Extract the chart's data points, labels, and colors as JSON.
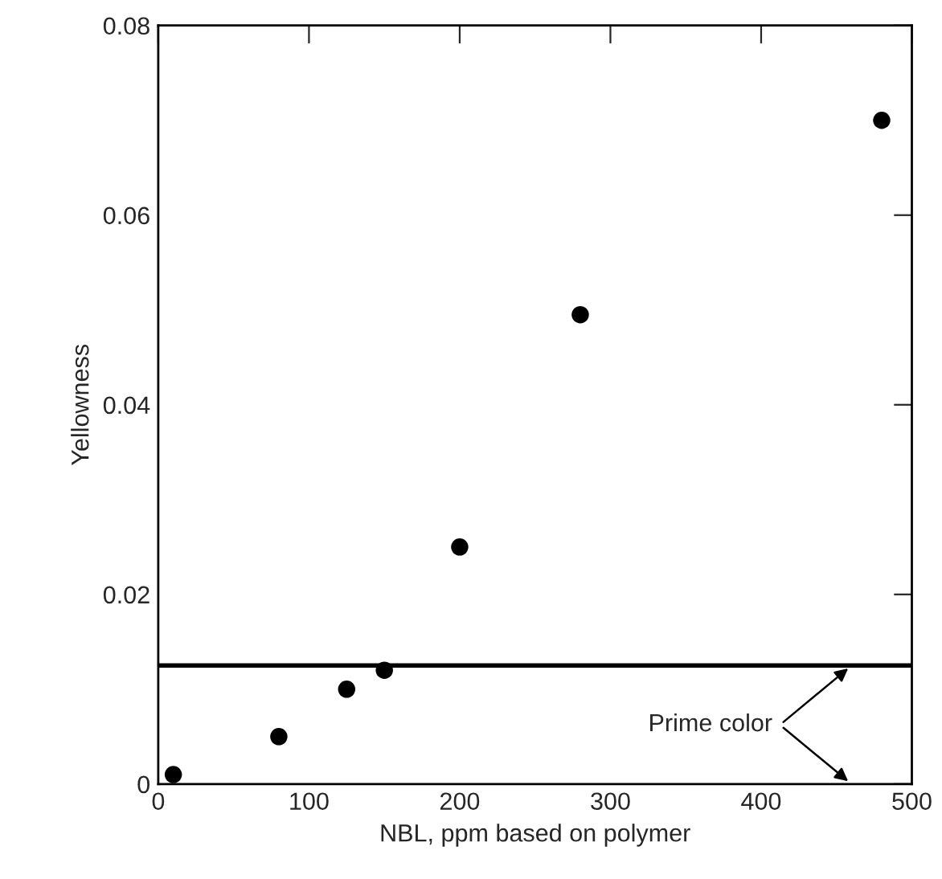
{
  "chart_data": {
    "type": "scatter",
    "xlabel": "NBL, ppm based on polymer",
    "ylabel": "Yellowness",
    "x": [
      10,
      80,
      125,
      150,
      200,
      280,
      480
    ],
    "values": [
      0.001,
      0.005,
      0.01,
      0.012,
      0.025,
      0.0495,
      0.07
    ],
    "color": "#000000",
    "marker": "circle",
    "grid": false,
    "legend": false,
    "xlim": [
      0,
      500
    ],
    "xticks": [
      0,
      100,
      200,
      300,
      400,
      500
    ],
    "ylim": [
      0,
      0.08
    ],
    "yticks": [
      {
        "value": 0,
        "label": "0"
      },
      0.02,
      0.04,
      0.06,
      0.08
    ],
    "ref_lines": [
      {
        "axis": "y",
        "value": 0.0125,
        "label": "Prime color",
        "color": "#000000",
        "line_style": "solid"
      }
    ]
  }
}
